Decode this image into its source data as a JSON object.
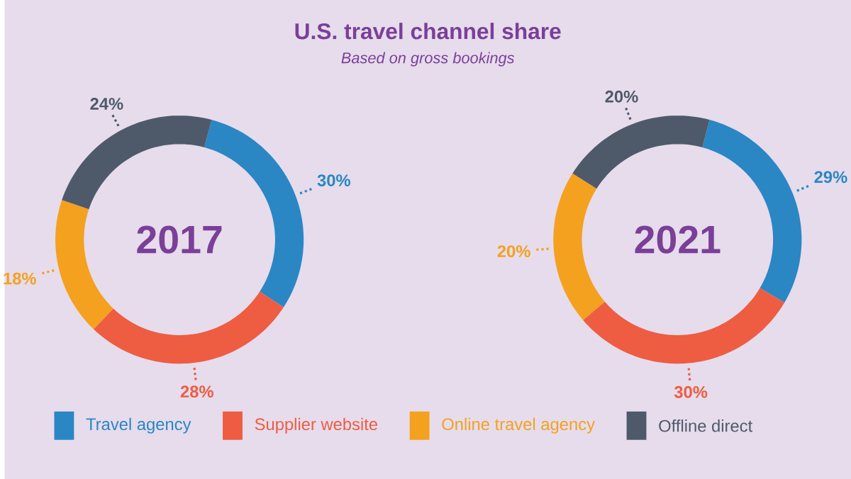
{
  "chart_data": [
    {
      "type": "donut",
      "title": "U.S. travel channel share",
      "subtitle": "Based on gross bookings",
      "annotations": [
        "2017"
      ],
      "categories": [
        "Travel agency",
        "Supplier website",
        "Online travel agency",
        "Offline direct"
      ],
      "values": [
        30,
        28,
        18,
        24
      ],
      "value_labels": [
        "30%",
        "28%",
        "18%",
        "24%"
      ],
      "colors": [
        "#2b86c4",
        "#ee5c42",
        "#f4a11f",
        "#4e5a6a"
      ],
      "legend": "bottom"
    },
    {
      "type": "donut",
      "annotations": [
        "2021"
      ],
      "categories": [
        null,
        null,
        null,
        null
      ],
      "values": [
        29,
        30,
        20,
        20
      ],
      "value_labels": [
        "29%",
        "30%",
        "20%",
        "20%"
      ],
      "colors": [
        "#2b86c4",
        "#ee5c42",
        "#f4a11f",
        "#4e5a6a"
      ]
    }
  ]
}
